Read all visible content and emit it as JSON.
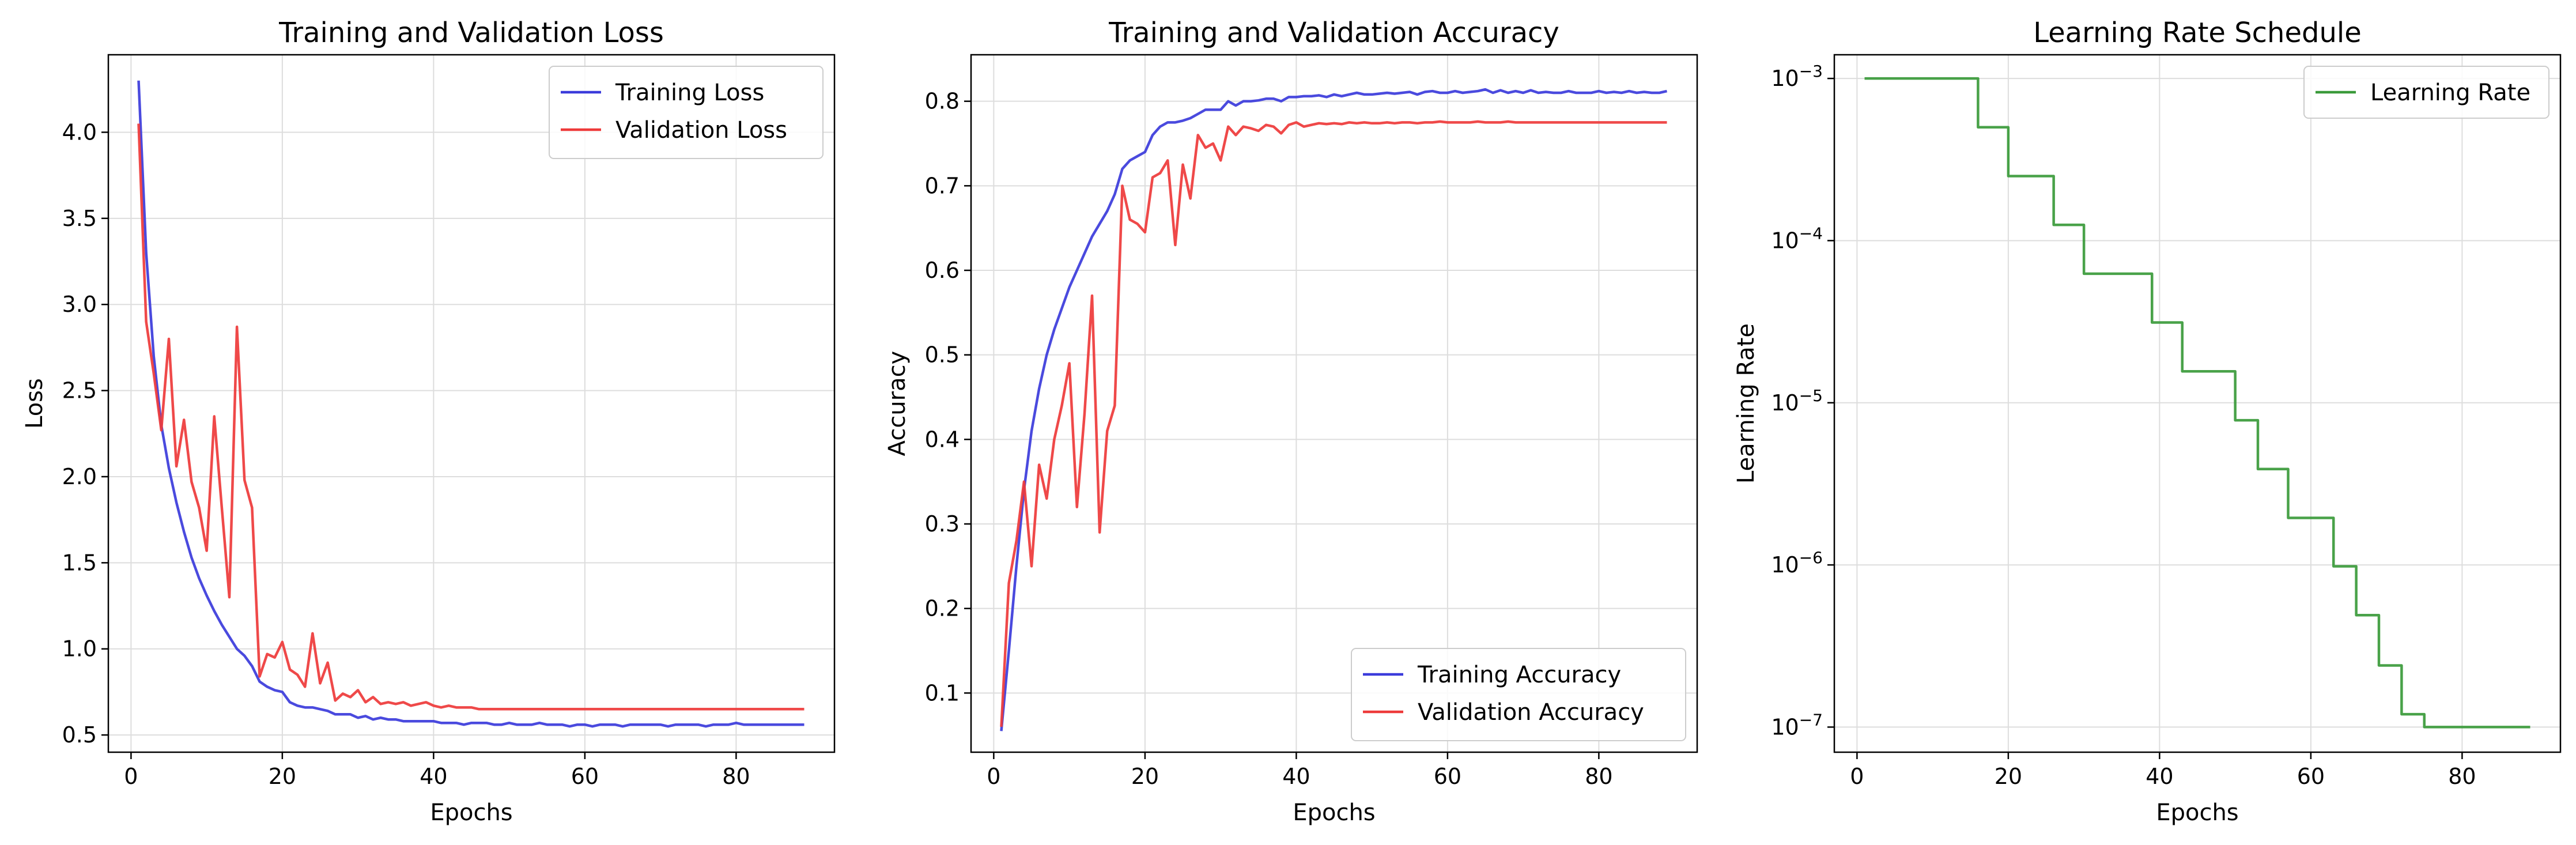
{
  "chart_data": [
    {
      "type": "line",
      "title": "Training and Validation Loss",
      "xlabel": "Epochs",
      "ylabel": "Loss",
      "xlim": [
        -3,
        93
      ],
      "ylim": [
        0.4,
        4.45
      ],
      "xticks": [
        0,
        20,
        40,
        60,
        80
      ],
      "yticks": [
        0.5,
        1.0,
        1.5,
        2.0,
        2.5,
        3.0,
        3.5,
        4.0
      ],
      "ytick_labels": [
        "0.5",
        "1.0",
        "1.5",
        "2.0",
        "2.5",
        "3.0",
        "3.5",
        "4.0"
      ],
      "yscale": "linear",
      "grid": true,
      "legend_position": "top-right",
      "x": [
        1,
        2,
        3,
        4,
        5,
        6,
        7,
        8,
        9,
        10,
        11,
        12,
        13,
        14,
        15,
        16,
        17,
        18,
        19,
        20,
        21,
        22,
        23,
        24,
        25,
        26,
        27,
        28,
        29,
        30,
        31,
        32,
        33,
        34,
        35,
        36,
        37,
        38,
        39,
        40,
        41,
        42,
        43,
        44,
        45,
        46,
        47,
        48,
        49,
        50,
        51,
        52,
        53,
        54,
        55,
        56,
        57,
        58,
        59,
        60,
        61,
        62,
        63,
        64,
        65,
        66,
        67,
        68,
        69,
        70,
        71,
        72,
        73,
        74,
        75,
        76,
        77,
        78,
        79,
        80,
        81,
        82,
        83,
        84,
        85,
        86,
        87,
        88,
        89
      ],
      "series": [
        {
          "name": "Training Loss",
          "color": "#3b3bdb",
          "values": [
            4.3,
            3.3,
            2.7,
            2.3,
            2.05,
            1.85,
            1.68,
            1.53,
            1.41,
            1.31,
            1.22,
            1.14,
            1.07,
            1.0,
            0.96,
            0.9,
            0.81,
            0.78,
            0.76,
            0.75,
            0.69,
            0.67,
            0.66,
            0.66,
            0.65,
            0.64,
            0.62,
            0.62,
            0.62,
            0.6,
            0.61,
            0.59,
            0.6,
            0.59,
            0.59,
            0.58,
            0.58,
            0.58,
            0.58,
            0.58,
            0.57,
            0.57,
            0.57,
            0.56,
            0.57,
            0.57,
            0.57,
            0.56,
            0.56,
            0.57,
            0.56,
            0.56,
            0.56,
            0.57,
            0.56,
            0.56,
            0.56,
            0.55,
            0.56,
            0.56,
            0.55,
            0.56,
            0.56,
            0.56,
            0.55,
            0.56,
            0.56,
            0.56,
            0.56,
            0.56,
            0.55,
            0.56,
            0.56,
            0.56,
            0.56,
            0.55,
            0.56,
            0.56,
            0.56,
            0.57,
            0.56,
            0.56,
            0.56,
            0.56,
            0.56,
            0.56,
            0.56,
            0.56,
            0.56
          ]
        },
        {
          "name": "Validation Loss",
          "color": "#ee3a3a",
          "values": [
            4.05,
            2.9,
            2.6,
            2.27,
            2.8,
            2.06,
            2.33,
            1.97,
            1.82,
            1.57,
            2.35,
            1.82,
            1.3,
            2.87,
            1.98,
            1.82,
            0.84,
            0.97,
            0.95,
            1.04,
            0.88,
            0.85,
            0.78,
            1.09,
            0.8,
            0.92,
            0.7,
            0.74,
            0.72,
            0.76,
            0.69,
            0.72,
            0.68,
            0.69,
            0.68,
            0.69,
            0.67,
            0.68,
            0.69,
            0.67,
            0.66,
            0.67,
            0.66,
            0.66,
            0.66,
            0.65,
            0.65,
            0.65,
            0.65,
            0.65,
            0.65,
            0.65,
            0.65,
            0.65,
            0.65,
            0.65,
            0.65,
            0.65,
            0.65,
            0.65,
            0.65,
            0.65,
            0.65,
            0.65,
            0.65,
            0.65,
            0.65,
            0.65,
            0.65,
            0.65,
            0.65,
            0.65,
            0.65,
            0.65,
            0.65,
            0.65,
            0.65,
            0.65,
            0.65,
            0.65,
            0.65,
            0.65,
            0.65,
            0.65,
            0.65,
            0.65,
            0.65,
            0.65,
            0.65
          ]
        }
      ]
    },
    {
      "type": "line",
      "title": "Training and Validation Accuracy",
      "xlabel": "Epochs",
      "ylabel": "Accuracy",
      "xlim": [
        -3,
        93
      ],
      "ylim": [
        0.03,
        0.855
      ],
      "xticks": [
        0,
        20,
        40,
        60,
        80
      ],
      "yticks": [
        0.1,
        0.2,
        0.3,
        0.4,
        0.5,
        0.6,
        0.7,
        0.8
      ],
      "ytick_labels": [
        "0.1",
        "0.2",
        "0.3",
        "0.4",
        "0.5",
        "0.6",
        "0.7",
        "0.8"
      ],
      "yscale": "linear",
      "grid": true,
      "legend_position": "bottom-right",
      "x": [
        1,
        2,
        3,
        4,
        5,
        6,
        7,
        8,
        9,
        10,
        11,
        12,
        13,
        14,
        15,
        16,
        17,
        18,
        19,
        20,
        21,
        22,
        23,
        24,
        25,
        26,
        27,
        28,
        29,
        30,
        31,
        32,
        33,
        34,
        35,
        36,
        37,
        38,
        39,
        40,
        41,
        42,
        43,
        44,
        45,
        46,
        47,
        48,
        49,
        50,
        51,
        52,
        53,
        54,
        55,
        56,
        57,
        58,
        59,
        60,
        61,
        62,
        63,
        64,
        65,
        66,
        67,
        68,
        69,
        70,
        71,
        72,
        73,
        74,
        75,
        76,
        77,
        78,
        79,
        80,
        81,
        82,
        83,
        84,
        85,
        86,
        87,
        88,
        89
      ],
      "series": [
        {
          "name": "Training Accuracy",
          "color": "#3b3bdb",
          "values": [
            0.055,
            0.15,
            0.25,
            0.34,
            0.41,
            0.46,
            0.5,
            0.53,
            0.555,
            0.58,
            0.6,
            0.62,
            0.64,
            0.655,
            0.67,
            0.69,
            0.72,
            0.73,
            0.735,
            0.74,
            0.76,
            0.77,
            0.775,
            0.775,
            0.777,
            0.78,
            0.785,
            0.79,
            0.79,
            0.79,
            0.8,
            0.795,
            0.8,
            0.8,
            0.801,
            0.803,
            0.803,
            0.8,
            0.805,
            0.805,
            0.806,
            0.806,
            0.807,
            0.805,
            0.808,
            0.806,
            0.808,
            0.81,
            0.808,
            0.808,
            0.809,
            0.81,
            0.809,
            0.81,
            0.811,
            0.808,
            0.811,
            0.812,
            0.81,
            0.81,
            0.812,
            0.81,
            0.811,
            0.812,
            0.814,
            0.81,
            0.813,
            0.81,
            0.812,
            0.81,
            0.813,
            0.81,
            0.811,
            0.81,
            0.81,
            0.812,
            0.81,
            0.81,
            0.81,
            0.812,
            0.81,
            0.811,
            0.81,
            0.812,
            0.81,
            0.811,
            0.81,
            0.81,
            0.812
          ]
        },
        {
          "name": "Validation Accuracy",
          "color": "#ee3a3a",
          "values": [
            0.06,
            0.23,
            0.28,
            0.35,
            0.25,
            0.37,
            0.33,
            0.4,
            0.44,
            0.49,
            0.32,
            0.43,
            0.57,
            0.29,
            0.41,
            0.44,
            0.7,
            0.66,
            0.655,
            0.645,
            0.71,
            0.715,
            0.73,
            0.63,
            0.725,
            0.685,
            0.76,
            0.745,
            0.75,
            0.73,
            0.77,
            0.76,
            0.77,
            0.768,
            0.765,
            0.772,
            0.77,
            0.762,
            0.772,
            0.775,
            0.77,
            0.772,
            0.774,
            0.773,
            0.774,
            0.773,
            0.775,
            0.774,
            0.775,
            0.774,
            0.774,
            0.775,
            0.774,
            0.775,
            0.775,
            0.774,
            0.775,
            0.775,
            0.776,
            0.775,
            0.775,
            0.775,
            0.775,
            0.776,
            0.775,
            0.775,
            0.775,
            0.776,
            0.775,
            0.775,
            0.775,
            0.775,
            0.775,
            0.775,
            0.775,
            0.775,
            0.775,
            0.775,
            0.775,
            0.775,
            0.775,
            0.775,
            0.775,
            0.775,
            0.775,
            0.775,
            0.775,
            0.775,
            0.775
          ]
        }
      ]
    },
    {
      "type": "line",
      "title": "Learning Rate Schedule",
      "xlabel": "Epochs",
      "ylabel": "Learning Rate",
      "xlim": [
        -3,
        93
      ],
      "ylim": [
        7e-08,
        0.0014
      ],
      "xticks": [
        0,
        20,
        40,
        60,
        80
      ],
      "yticks": [
        1e-07,
        1e-06,
        1e-05,
        0.0001,
        0.001
      ],
      "ytick_labels": [
        "10",
        "10",
        "10",
        "10",
        "10"
      ],
      "ytick_exponents": [
        "−7",
        "−6",
        "−5",
        "−4",
        "−3"
      ],
      "yscale": "log",
      "grid": true,
      "legend_position": "top-right",
      "x": [
        1,
        2,
        3,
        4,
        5,
        6,
        7,
        8,
        9,
        10,
        11,
        12,
        13,
        14,
        15,
        16,
        17,
        18,
        19,
        20,
        21,
        22,
        23,
        24,
        25,
        26,
        27,
        28,
        29,
        30,
        31,
        32,
        33,
        34,
        35,
        36,
        37,
        38,
        39,
        40,
        41,
        42,
        43,
        44,
        45,
        46,
        47,
        48,
        49,
        50,
        51,
        52,
        53,
        54,
        55,
        56,
        57,
        58,
        59,
        60,
        61,
        62,
        63,
        64,
        65,
        66,
        67,
        68,
        69,
        70,
        71,
        72,
        73,
        74,
        75,
        76,
        77,
        78,
        79,
        80,
        81,
        82,
        83,
        84,
        85,
        86,
        87,
        88,
        89
      ],
      "series": [
        {
          "name": "Learning Rate",
          "color": "#3a9a3a",
          "step": true,
          "values": [
            0.001,
            0.001,
            0.001,
            0.001,
            0.001,
            0.001,
            0.001,
            0.001,
            0.001,
            0.001,
            0.001,
            0.001,
            0.001,
            0.001,
            0.001,
            0.0005,
            0.0005,
            0.0005,
            0.0005,
            0.00025,
            0.00025,
            0.00025,
            0.00025,
            0.00025,
            0.00025,
            0.000125,
            0.000125,
            0.000125,
            0.000125,
            6.25e-05,
            6.25e-05,
            6.25e-05,
            6.25e-05,
            6.25e-05,
            6.25e-05,
            6.25e-05,
            6.25e-05,
            6.25e-05,
            3.125e-05,
            3.125e-05,
            3.125e-05,
            3.125e-05,
            1.5625e-05,
            1.5625e-05,
            1.5625e-05,
            1.5625e-05,
            1.5625e-05,
            1.5625e-05,
            1.5625e-05,
            7.8e-06,
            7.8e-06,
            7.8e-06,
            3.9e-06,
            3.9e-06,
            3.9e-06,
            3.9e-06,
            1.95e-06,
            1.95e-06,
            1.95e-06,
            1.95e-06,
            1.95e-06,
            1.95e-06,
            9.8e-07,
            9.8e-07,
            9.8e-07,
            4.9e-07,
            4.9e-07,
            4.9e-07,
            2.4e-07,
            2.4e-07,
            2.4e-07,
            1.2e-07,
            1.2e-07,
            1.2e-07,
            1e-07,
            1e-07,
            1e-07,
            1e-07,
            1e-07,
            1e-07,
            1e-07,
            1e-07,
            1e-07,
            1e-07,
            1e-07,
            1e-07,
            1e-07,
            1e-07,
            1e-07
          ]
        }
      ]
    }
  ]
}
